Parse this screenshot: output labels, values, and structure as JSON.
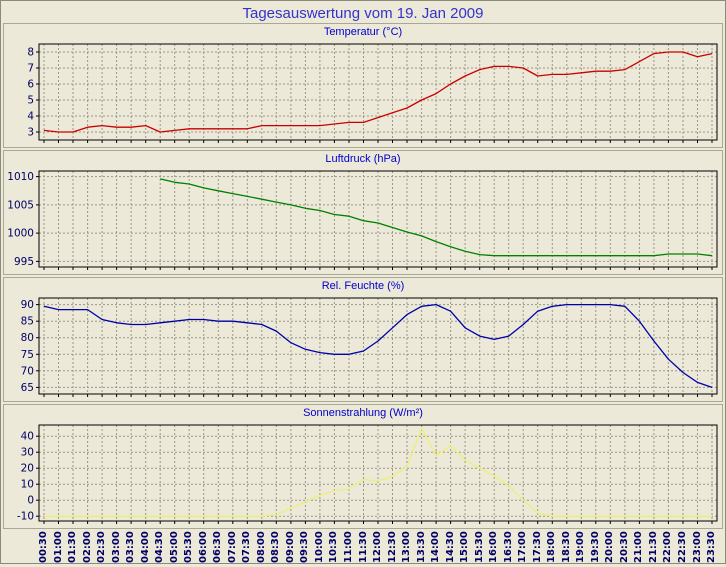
{
  "page": {
    "title": "Tagesauswertung vom 19. Jan 2009"
  },
  "colors": {
    "background": "#ece9d8",
    "plot_background": "#ece9d8",
    "grid": "#98988a",
    "page_title_blue": "#3333cc",
    "chart_title_blue": "#0000cc",
    "axis_label_navy": "#000066",
    "temperature_red": "#cc0000",
    "pressure_green": "#008000",
    "humidity_blue": "#0000aa",
    "solar_yellow": "#eeee77"
  },
  "x_labels": [
    "00:30",
    "01:00",
    "01:30",
    "02:00",
    "02:30",
    "03:00",
    "03:30",
    "04:00",
    "04:30",
    "05:00",
    "05:30",
    "06:00",
    "06:30",
    "07:00",
    "07:30",
    "08:00",
    "08:30",
    "09:00",
    "09:30",
    "10:00",
    "10:30",
    "11:00",
    "11:30",
    "12:00",
    "12:30",
    "13:00",
    "13:30",
    "14:00",
    "14:30",
    "15:00",
    "15:30",
    "16:00",
    "16:30",
    "17:00",
    "17:30",
    "18:00",
    "18:30",
    "19:00",
    "19:30",
    "20:00",
    "20:30",
    "21:00",
    "21:30",
    "22:00",
    "22:30",
    "23:00",
    "23:30"
  ],
  "chart_data": [
    {
      "type": "line",
      "title": "Temperatur (°C)",
      "color": "#cc0000",
      "ylim": [
        2.5,
        8.5
      ],
      "yticks": [
        3,
        4,
        5,
        6,
        7,
        8
      ],
      "values": [
        3.1,
        3.0,
        3.0,
        3.3,
        3.4,
        3.3,
        3.3,
        3.4,
        3.0,
        3.1,
        3.2,
        3.2,
        3.2,
        3.2,
        3.2,
        3.4,
        3.4,
        3.4,
        3.4,
        3.4,
        3.5,
        3.6,
        3.6,
        3.9,
        4.2,
        4.5,
        5.0,
        5.4,
        6.0,
        6.5,
        6.9,
        7.1,
        7.1,
        7.0,
        6.5,
        6.6,
        6.6,
        6.7,
        6.8,
        6.8,
        6.9,
        7.4,
        7.9,
        8.0,
        8.0,
        7.7,
        7.9
      ]
    },
    {
      "type": "line",
      "title": "Luftdruck (hPa)",
      "color": "#008000",
      "ylim": [
        994,
        1011
      ],
      "yticks": [
        995,
        1000,
        1005,
        1010
      ],
      "values": [
        null,
        null,
        null,
        null,
        null,
        null,
        null,
        null,
        1009.6,
        1009.0,
        1008.7,
        1008.0,
        1007.5,
        1007.0,
        1006.5,
        1006.0,
        1005.5,
        1005.0,
        1004.4,
        1004.0,
        1003.3,
        1003.0,
        1002.2,
        1001.8,
        1001.0,
        1000.2,
        999.5,
        998.5,
        997.6,
        996.8,
        996.2,
        996.0,
        996.0,
        996.0,
        996.0,
        996.0,
        996.0,
        996.0,
        996.0,
        996.0,
        996.0,
        996.0,
        996.0,
        996.3,
        996.3,
        996.3,
        996.0
      ]
    },
    {
      "type": "line",
      "title": "Rel. Feuchte (%)",
      "color": "#0000aa",
      "ylim": [
        63,
        92
      ],
      "yticks": [
        65,
        70,
        75,
        80,
        85,
        90
      ],
      "values": [
        89.5,
        88.5,
        88.5,
        88.5,
        85.5,
        84.5,
        84.0,
        84.0,
        84.5,
        85.0,
        85.5,
        85.5,
        85.0,
        85.0,
        84.5,
        84.0,
        82.0,
        78.5,
        76.5,
        75.5,
        75.0,
        75.0,
        76.0,
        79.0,
        83.0,
        87.0,
        89.5,
        90.0,
        88.0,
        83.0,
        80.5,
        79.5,
        80.5,
        84.0,
        88.0,
        89.5,
        90.0,
        90.0,
        90.0,
        90.0,
        89.5,
        85.0,
        79.0,
        73.5,
        69.5,
        66.5,
        65.0
      ]
    },
    {
      "type": "line",
      "title": "Sonnenstrahlung (W/m²)",
      "color": "#eeee77",
      "ylim": [
        -13,
        47
      ],
      "yticks": [
        -10,
        0,
        10,
        20,
        30,
        40
      ],
      "values": [
        -10,
        -10,
        -10,
        -10,
        -10,
        -10,
        -10,
        -10,
        -10,
        -10,
        -10,
        -10,
        -10,
        -10,
        -10,
        -10,
        -9,
        -5,
        -1,
        3,
        6,
        7,
        13,
        12,
        15,
        21,
        45,
        28,
        34,
        25,
        20,
        15,
        9,
        0,
        -8,
        -10,
        -10,
        -10,
        -10,
        -10,
        -10,
        -10,
        -10,
        -10,
        -10,
        -10,
        -10
      ]
    }
  ]
}
